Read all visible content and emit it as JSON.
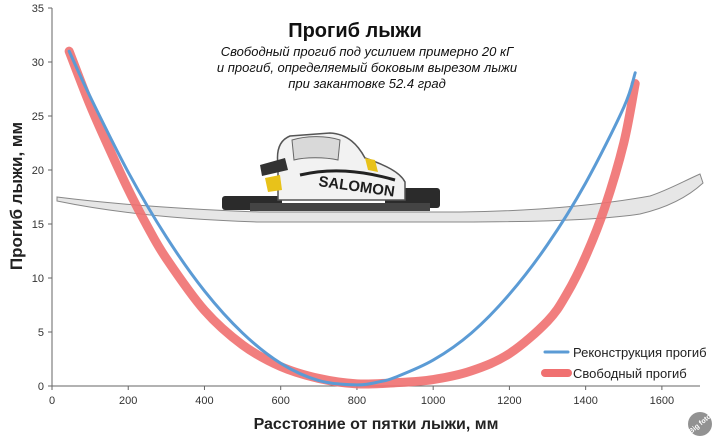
{
  "chart_data": {
    "type": "line",
    "title": "Прогиб лыжи",
    "subtitle_lines": [
      "Свободный прогиб под усилием примерно 20 кГ",
      "и прогиб, определяемый боковым вырезом лыжи",
      "при закантовке 52.4 град"
    ],
    "xlabel": "Расстояние от пятки лыжи, мм",
    "ylabel": "Прогиб лыжи, мм",
    "xlim": [
      0,
      1700
    ],
    "ylim": [
      0,
      35
    ],
    "x_ticks": [
      0,
      200,
      400,
      600,
      800,
      1000,
      1200,
      1400,
      1600
    ],
    "y_ticks": [
      0,
      5,
      10,
      15,
      20,
      25,
      30,
      35
    ],
    "grid": false,
    "legend_position": "bottom-right",
    "series": [
      {
        "name": "Реконструкция прогиб",
        "color": "#5b9bd5",
        "x": [
          45,
          100,
          200,
          300,
          400,
          500,
          600,
          700,
          800,
          860,
          900,
          1000,
          1100,
          1200,
          1300,
          1400,
          1500,
          1530
        ],
        "y": [
          31.0,
          26.8,
          19.8,
          13.8,
          8.8,
          4.9,
          2.1,
          0.5,
          0.1,
          0.4,
          0.8,
          2.4,
          4.9,
          8.5,
          13.1,
          18.8,
          25.8,
          29.0
        ]
      },
      {
        "name": "Свободный прогиб",
        "color": "#f07070",
        "x": [
          45,
          100,
          150,
          200,
          250,
          300,
          400,
          500,
          600,
          700,
          800,
          900,
          1000,
          1100,
          1200,
          1300,
          1350,
          1400,
          1450,
          1500,
          1530
        ],
        "y": [
          31.0,
          26.0,
          22.0,
          18.2,
          14.8,
          11.8,
          7.0,
          3.8,
          1.8,
          0.7,
          0.2,
          0.3,
          0.6,
          1.4,
          3.0,
          6.0,
          8.5,
          12.0,
          16.5,
          22.5,
          28.0
        ]
      }
    ]
  },
  "watermark": "Big foto"
}
